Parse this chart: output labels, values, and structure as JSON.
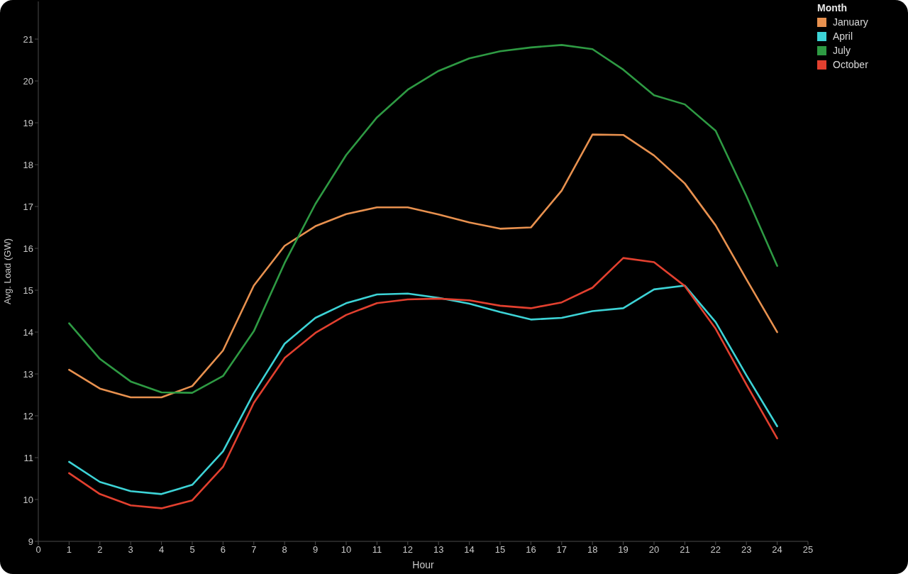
{
  "chart_data": {
    "type": "line",
    "xlabel": "Hour",
    "ylabel": "Avg. Load (GW)",
    "legend_title": "Month",
    "x": [
      1,
      2,
      3,
      4,
      5,
      6,
      7,
      8,
      9,
      10,
      11,
      12,
      13,
      14,
      15,
      16,
      17,
      18,
      19,
      20,
      21,
      22,
      23,
      24
    ],
    "series": [
      {
        "name": "January",
        "color": "#e8914f",
        "values": [
          13.1,
          12.65,
          12.44,
          12.44,
          12.71,
          13.56,
          15.11,
          16.06,
          16.53,
          16.82,
          16.98,
          16.98,
          16.81,
          16.62,
          16.47,
          16.5,
          17.38,
          18.72,
          18.71,
          18.22,
          17.55,
          16.55,
          15.26,
          14.0
        ]
      },
      {
        "name": "April",
        "color": "#3dd3d6",
        "values": [
          10.9,
          10.42,
          10.2,
          10.13,
          10.35,
          11.15,
          12.54,
          13.72,
          14.34,
          14.69,
          14.9,
          14.92,
          14.82,
          14.68,
          14.48,
          14.3,
          14.34,
          14.5,
          14.57,
          15.02,
          15.11,
          14.24,
          12.97,
          11.75
        ]
      },
      {
        "name": "July",
        "color": "#2e9a43",
        "values": [
          14.21,
          13.36,
          12.82,
          12.56,
          12.55,
          12.95,
          14.02,
          15.65,
          17.06,
          18.23,
          19.13,
          19.79,
          20.24,
          20.54,
          20.71,
          20.8,
          20.86,
          20.76,
          20.27,
          19.66,
          19.44,
          18.81,
          17.25,
          15.58
        ]
      },
      {
        "name": "October",
        "color": "#e2402f",
        "values": [
          10.63,
          10.13,
          9.86,
          9.79,
          9.98,
          10.78,
          12.31,
          13.38,
          13.98,
          14.41,
          14.69,
          14.78,
          14.8,
          14.76,
          14.63,
          14.57,
          14.71,
          15.06,
          15.77,
          15.67,
          15.1,
          14.08,
          12.75,
          11.46
        ]
      }
    ],
    "xlim": [
      0,
      25
    ],
    "xticks": [
      0,
      1,
      2,
      3,
      4,
      5,
      6,
      7,
      8,
      9,
      10,
      11,
      12,
      13,
      14,
      15,
      16,
      17,
      18,
      19,
      20,
      21,
      22,
      23,
      24,
      25
    ],
    "ylim": [
      9,
      21.9
    ],
    "yticks": [
      9,
      10,
      11,
      12,
      13,
      14,
      15,
      16,
      17,
      18,
      19,
      20,
      21
    ],
    "grid": false,
    "legend": "top right",
    "marker": "none",
    "line_style": "solid"
  }
}
